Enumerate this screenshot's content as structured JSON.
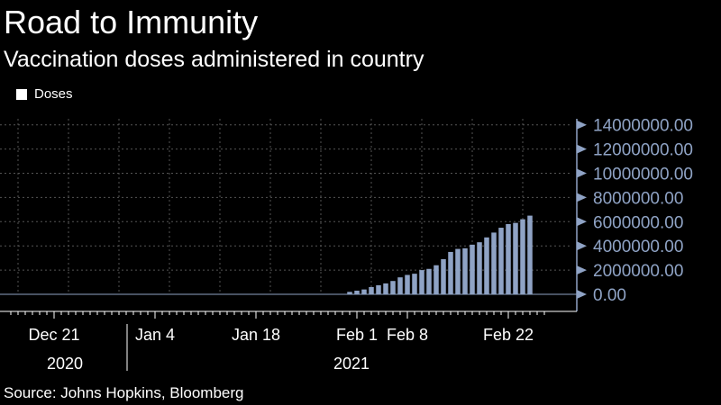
{
  "title": "Road to Immunity",
  "subtitle": "Vaccination doses administered in country",
  "source": "Source: Johns Hopkins, Bloomberg",
  "colors": {
    "background": "#000000",
    "bar": "#8fa3c5",
    "axis": "#8fa3c5",
    "grid": "#555555",
    "text": "#ffffff"
  },
  "chart_data": {
    "type": "bar",
    "title": "Road to Immunity",
    "subtitle": "Vaccination doses administered in country",
    "legend": {
      "entries": [
        "Doses"
      ],
      "placement": "top-left"
    },
    "series": [
      {
        "name": "Doses",
        "x": [
          "2020-12-15",
          "2020-12-16",
          "2020-12-17",
          "2020-12-18",
          "2020-12-19",
          "2020-12-20",
          "2020-12-21",
          "2020-12-22",
          "2020-12-23",
          "2020-12-24",
          "2020-12-25",
          "2020-12-26",
          "2020-12-27",
          "2020-12-28",
          "2020-12-29",
          "2020-12-30",
          "2020-12-31",
          "2021-01-01",
          "2021-01-02",
          "2021-01-03",
          "2021-01-04",
          "2021-01-05",
          "2021-01-06",
          "2021-01-07",
          "2021-01-08",
          "2021-01-09",
          "2021-01-10",
          "2021-01-11",
          "2021-01-12",
          "2021-01-13",
          "2021-01-14",
          "2021-01-15",
          "2021-01-16",
          "2021-01-17",
          "2021-01-18",
          "2021-01-19",
          "2021-01-20",
          "2021-01-21",
          "2021-01-22",
          "2021-01-23",
          "2021-01-24",
          "2021-01-25",
          "2021-01-26",
          "2021-01-27",
          "2021-01-28",
          "2021-01-29",
          "2021-01-30",
          "2021-01-31",
          "2021-02-01",
          "2021-02-02",
          "2021-02-03",
          "2021-02-04",
          "2021-02-05",
          "2021-02-06",
          "2021-02-07",
          "2021-02-08",
          "2021-02-09",
          "2021-02-10",
          "2021-02-11",
          "2021-02-12",
          "2021-02-13",
          "2021-02-14",
          "2021-02-15",
          "2021-02-16",
          "2021-02-17",
          "2021-02-18",
          "2021-02-19",
          "2021-02-20",
          "2021-02-21",
          "2021-02-22",
          "2021-02-23",
          "2021-02-24",
          "2021-02-25"
        ],
        "values": [
          0,
          0,
          0,
          0,
          0,
          0,
          0,
          0,
          0,
          0,
          0,
          0,
          0,
          0,
          0,
          0,
          0,
          0,
          0,
          0,
          0,
          0,
          0,
          0,
          0,
          0,
          0,
          0,
          0,
          0,
          0,
          0,
          0,
          0,
          0,
          0,
          0,
          0,
          0,
          0,
          0,
          0,
          0,
          0,
          0,
          0,
          0,
          200000,
          300000,
          400000,
          600000,
          750000,
          900000,
          1100000,
          1400000,
          1600000,
          1700000,
          2000000,
          2100000,
          2400000,
          2900000,
          3500000,
          3750000,
          3800000,
          4100000,
          4300000,
          4700000,
          5100000,
          5500000,
          5800000,
          5900000,
          6200000,
          6500000
        ]
      }
    ],
    "y_ticks": [
      0,
      2000000,
      4000000,
      6000000,
      8000000,
      10000000,
      12000000,
      14000000
    ],
    "y_tick_labels": [
      "0.00",
      "2000000.00",
      "4000000.00",
      "6000000.00",
      "8000000.00",
      "10000000.00",
      "12000000.00",
      "14000000.00"
    ],
    "ylim": [
      0,
      14500000
    ],
    "y_axis_position": "right",
    "x_ticks": [
      {
        "date": "2020-12-21",
        "label": "Dec 21"
      },
      {
        "date": "2021-01-04",
        "label": "Jan 4"
      },
      {
        "date": "2021-01-18",
        "label": "Jan 18"
      },
      {
        "date": "2021-02-01",
        "label": "Feb 1"
      },
      {
        "date": "2021-02-08",
        "label": "Feb 8"
      },
      {
        "date": "2021-02-22",
        "label": "Feb 22"
      }
    ],
    "x_year_labels": [
      {
        "label": "2020"
      },
      {
        "label": "2021"
      }
    ],
    "grid": true
  }
}
